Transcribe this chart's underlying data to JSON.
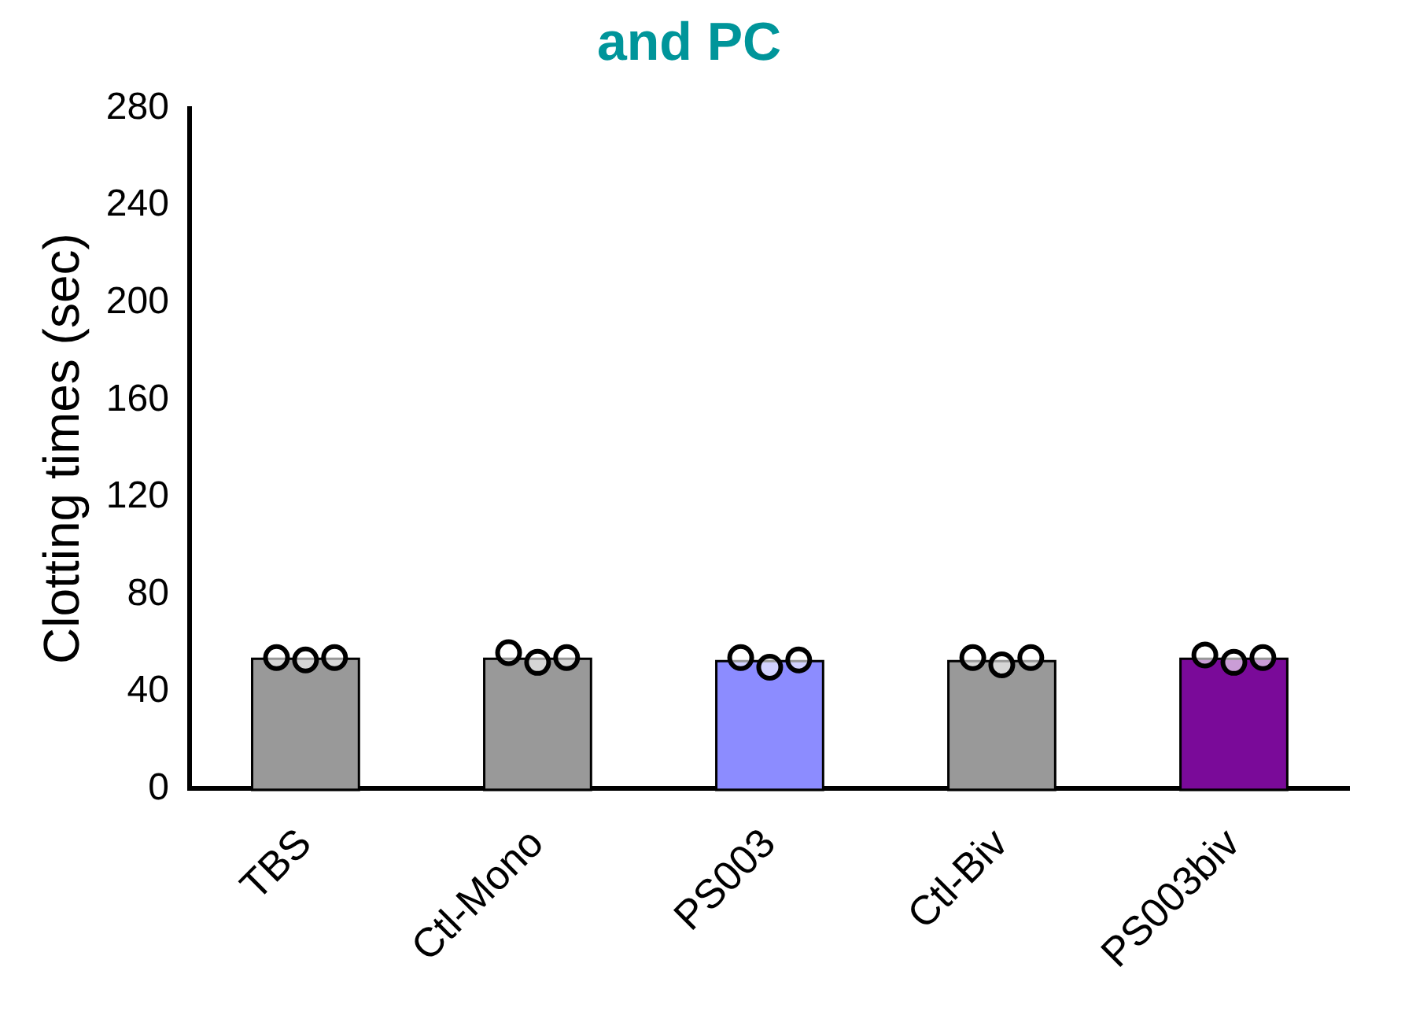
{
  "chart_data": {
    "type": "bar",
    "title": "and PC",
    "ylabel": "Clotting times (sec)",
    "categories": [
      "TBS",
      "Ctl-Mono",
      "PS003",
      "Ctl-Biv",
      "PS003biv"
    ],
    "series": [
      {
        "colors": [
          "#999999",
          "#999999",
          "#8c8cff",
          "#999999",
          "#7a0a99"
        ],
        "values": [
          53,
          53,
          52,
          52,
          53
        ]
      },
      {
        "type": "scatter",
        "color": "#000000",
        "x": [
          "TBS",
          "TBS",
          "TBS",
          "Ctl-Mono",
          "Ctl-Mono",
          "Ctl-Mono",
          "PS003",
          "PS003",
          "PS003",
          "Ctl-Biv",
          "Ctl-Biv",
          "Ctl-Biv",
          "PS003biv",
          "PS003biv",
          "PS003biv"
        ],
        "values": [
          54,
          53,
          54,
          56,
          52,
          54,
          54,
          50,
          53,
          54,
          51,
          54,
          55,
          52,
          54
        ]
      }
    ],
    "ylim": [
      0,
      280
    ],
    "yticks": [
      0,
      40,
      80,
      120,
      160,
      200,
      240,
      280
    ],
    "grid": false,
    "legend": false,
    "marker": "circle"
  }
}
